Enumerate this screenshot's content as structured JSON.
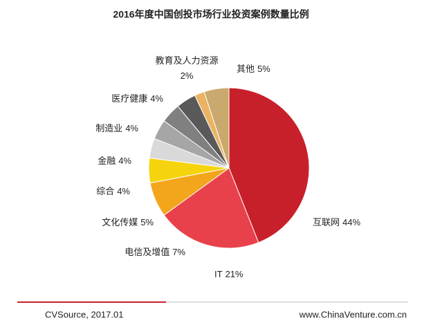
{
  "chart_data": {
    "type": "pie",
    "title": "2016年度中国创投市场行业投资案例数量比例",
    "categories": [
      "互联网",
      "IT",
      "电信及增值",
      "文化传媒",
      "综合",
      "金融",
      "制造业",
      "医疗健康",
      "教育及人力资源",
      "其他"
    ],
    "values": [
      44,
      21,
      7,
      5,
      4,
      4,
      4,
      4,
      2,
      5
    ],
    "value_labels": [
      "44%",
      "21%",
      "7%",
      "5%",
      "4%",
      "4%",
      "4%",
      "4%",
      "2%",
      "5%"
    ],
    "colors": [
      "#c8202a",
      "#e8414b",
      "#f3a51b",
      "#f6d40d",
      "#d9d9d9",
      "#a6a6a6",
      "#808080",
      "#595959",
      "#eab363",
      "#c9a96e"
    ]
  },
  "footer": {
    "source": "CVSource, 2017.01",
    "website": "www.ChinaVenture.com.cn"
  }
}
